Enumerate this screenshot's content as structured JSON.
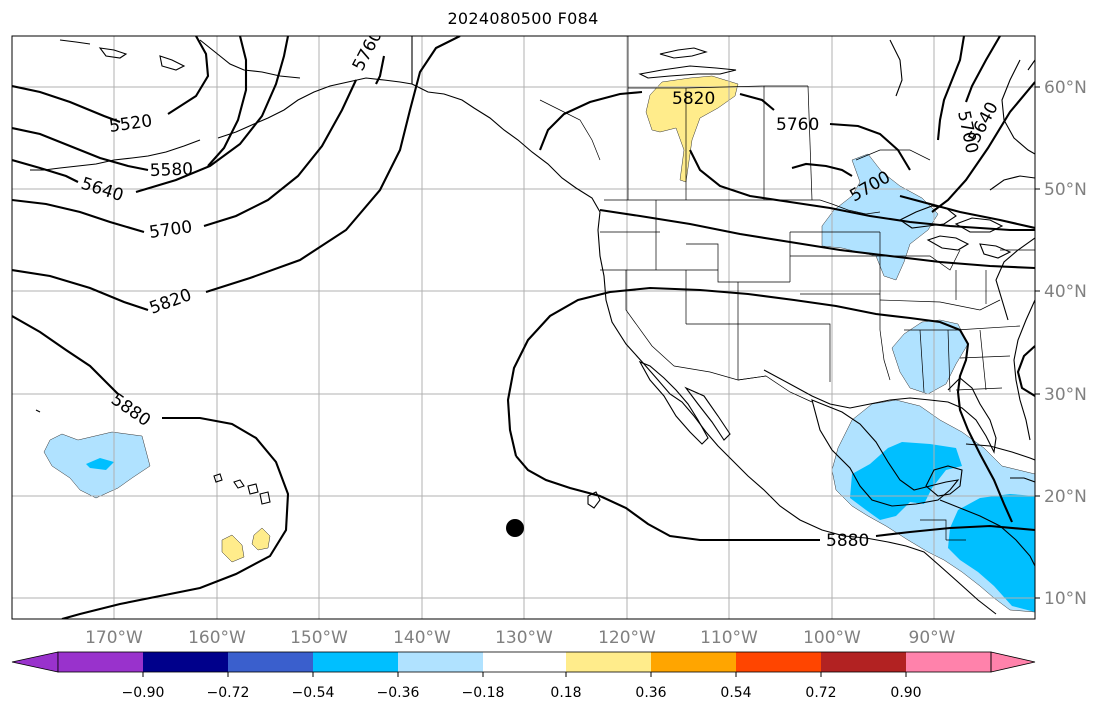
{
  "title": "2024080500 F084",
  "longitude_labels": [
    "170°W",
    "160°W",
    "150°W",
    "140°W",
    "130°W",
    "120°W",
    "110°W",
    "100°W",
    "90°W"
  ],
  "latitude_labels": [
    "60°N",
    "50°N",
    "40°N",
    "30°N",
    "20°N",
    "10°N"
  ],
  "contour_labels": [
    "5520",
    "5580",
    "5640",
    "5700",
    "5820",
    "5880",
    "5760",
    "5820",
    "5760",
    "5700",
    "5640",
    "5700",
    "5880"
  ],
  "colorbar": {
    "ticks": [
      "−0.90",
      "−0.72",
      "−0.54",
      "−0.36",
      "−0.18",
      "0.18",
      "0.36",
      "0.54",
      "0.72",
      "0.90"
    ],
    "colors": [
      "#9932cc",
      "#00008b",
      "#3a5fcd",
      "#00bfff",
      "#b0e2ff",
      "#ffffff",
      "#ffec8b",
      "#ffa500",
      "#ff4500",
      "#b22222",
      "#ff82ab"
    ]
  },
  "marker": "storm-position-dot"
}
